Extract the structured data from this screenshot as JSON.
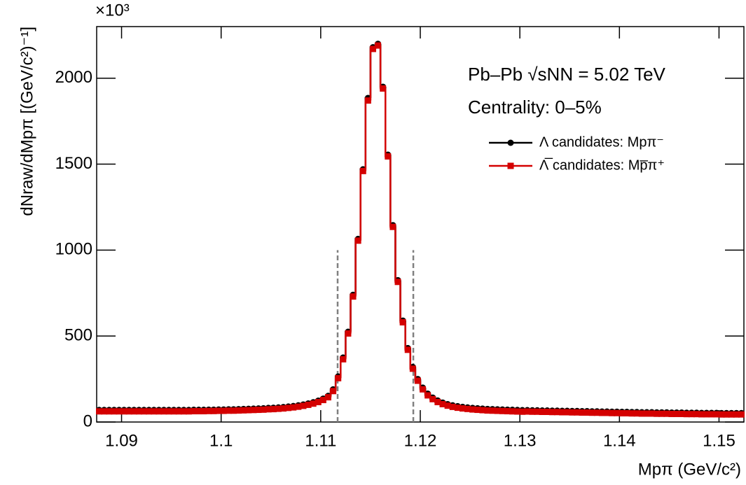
{
  "chart_data": {
    "type": "histogram",
    "multiplier": "×10³",
    "x_label": "Mpπ (GeV/c²)",
    "y_label": "dNraw/dMpπ [(GeV/c²)⁻¹]",
    "annotations": [
      "Pb–Pb √sNN = 5.02 TeV",
      "Centrality: 0–5%"
    ],
    "bins": [
      1.0875,
      1.088,
      1.0885,
      1.089,
      1.0895,
      1.09,
      1.0905,
      1.091,
      1.0915,
      1.092,
      1.0925,
      1.093,
      1.0935,
      1.094,
      1.0945,
      1.095,
      1.0955,
      1.096,
      1.0965,
      1.097,
      1.0975,
      1.098,
      1.0985,
      1.099,
      1.0995,
      1.1,
      1.1005,
      1.101,
      1.1015,
      1.102,
      1.1025,
      1.103,
      1.1035,
      1.104,
      1.1045,
      1.105,
      1.1055,
      1.106,
      1.1065,
      1.107,
      1.1075,
      1.108,
      1.1085,
      1.109,
      1.1095,
      1.11,
      1.1105,
      1.111,
      1.1115,
      1.112,
      1.1125,
      1.113,
      1.1135,
      1.114,
      1.1145,
      1.115,
      1.1155,
      1.116,
      1.1165,
      1.117,
      1.1175,
      1.118,
      1.1185,
      1.119,
      1.1195,
      1.12,
      1.1205,
      1.121,
      1.1215,
      1.122,
      1.1225,
      1.123,
      1.1235,
      1.124,
      1.1245,
      1.125,
      1.1255,
      1.126,
      1.1265,
      1.127,
      1.1275,
      1.128,
      1.1285,
      1.129,
      1.1295,
      1.13,
      1.1305,
      1.131,
      1.1315,
      1.132,
      1.1325,
      1.133,
      1.1335,
      1.134,
      1.1345,
      1.135,
      1.1355,
      1.136,
      1.1365,
      1.137,
      1.1375,
      1.138,
      1.1385,
      1.139,
      1.1395,
      1.14,
      1.1405,
      1.141,
      1.1415,
      1.142,
      1.1425,
      1.143,
      1.1435,
      1.144,
      1.1445,
      1.145,
      1.1455,
      1.146,
      1.1465,
      1.147,
      1.1475,
      1.148,
      1.1485,
      1.149,
      1.1495,
      1.15,
      1.1505,
      1.151,
      1.1515,
      1.152,
      1.1525
    ],
    "series": [
      {
        "name": "Λ candidates: Mpπ⁻",
        "color": "#000000",
        "marker": "circle",
        "values": [
          70,
          70,
          70,
          70,
          70,
          70,
          70,
          70,
          70,
          70,
          70,
          70,
          70,
          70,
          70,
          70,
          70,
          70,
          70,
          71,
          71,
          71,
          72,
          72,
          73,
          73,
          74,
          74,
          75,
          76,
          77,
          78,
          79,
          80,
          82,
          83,
          85,
          87,
          90,
          93,
          97,
          102,
          108,
          115,
          124,
          136,
          152,
          190,
          265,
          375,
          525,
          740,
          1065,
          1470,
          1885,
          2180,
          2200,
          1950,
          1555,
          1145,
          825,
          590,
          430,
          320,
          250,
          200,
          165,
          142,
          125,
          113,
          104,
          97,
          92,
          88,
          85,
          82,
          80,
          78,
          76,
          75,
          74,
          73,
          72,
          71,
          70,
          69,
          69,
          68,
          68,
          67,
          67,
          66,
          66,
          65,
          65,
          64,
          64,
          63,
          63,
          62,
          62,
          61,
          61,
          60,
          60,
          59,
          59,
          58,
          58,
          57,
          57,
          57,
          56,
          56,
          56,
          55,
          55,
          55,
          54,
          54,
          54,
          53,
          53,
          53,
          53,
          52,
          52,
          52,
          52,
          52
        ]
      },
      {
        "name": "Λ̅ candidates: Mp̅π⁺",
        "color": "#d40000",
        "marker": "square",
        "values": [
          62,
          62,
          62,
          62,
          62,
          62,
          62,
          62,
          62,
          62,
          62,
          62,
          62,
          62,
          62,
          62,
          62,
          62,
          62,
          63,
          63,
          63,
          64,
          64,
          65,
          65,
          66,
          66,
          67,
          68,
          69,
          70,
          71,
          72,
          74,
          75,
          77,
          79,
          82,
          85,
          89,
          94,
          100,
          107,
          116,
          128,
          144,
          180,
          255,
          365,
          515,
          730,
          1055,
          1460,
          1870,
          2170,
          2190,
          1940,
          1545,
          1135,
          815,
          580,
          420,
          310,
          240,
          190,
          155,
          133,
          116,
          104,
          95,
          88,
          83,
          79,
          76,
          73,
          71,
          69,
          67,
          66,
          65,
          64,
          63,
          62,
          61,
          60,
          61,
          60,
          60,
          59,
          59,
          58,
          58,
          57,
          57,
          56,
          56,
          55,
          55,
          54,
          54,
          53,
          53,
          52,
          52,
          51,
          51,
          50,
          50,
          49,
          49,
          49,
          48,
          48,
          48,
          47,
          47,
          47,
          46,
          46,
          46,
          45,
          45,
          45,
          45,
          44,
          44,
          44,
          44,
          44
        ]
      }
    ],
    "vlines": [
      {
        "x": 1.1117,
        "top": 1000,
        "color": "#808080"
      },
      {
        "x": 1.1193,
        "top": 1000,
        "color": "#808080"
      }
    ],
    "xlim": [
      1.0875,
      1.1525
    ],
    "xticks": [
      1.09,
      1.1,
      1.11,
      1.12,
      1.13,
      1.14,
      1.15
    ],
    "ylim": [
      0,
      2300
    ],
    "yticks": [
      0,
      500,
      1000,
      1500,
      2000
    ],
    "legend": "upper right"
  }
}
